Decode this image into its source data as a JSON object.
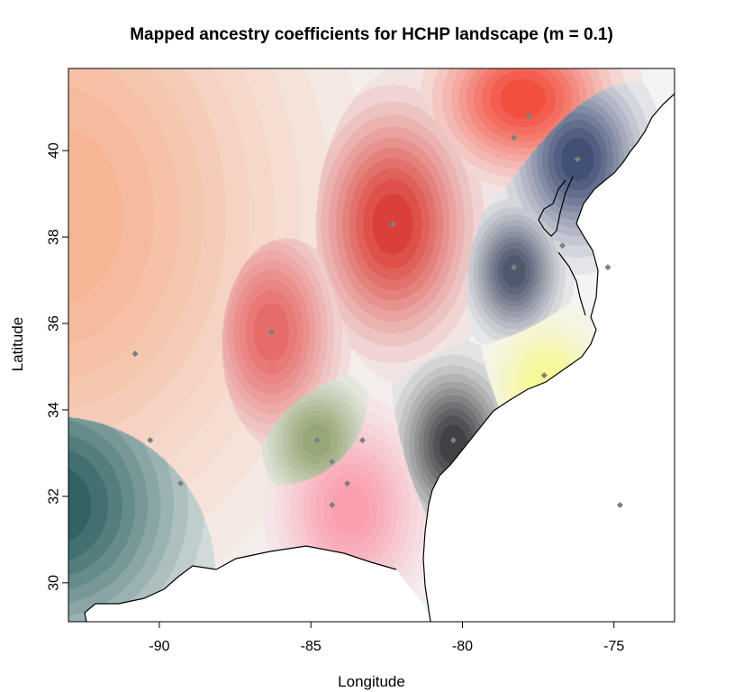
{
  "chart_data": {
    "type": "heatmap",
    "title": "Mapped ancestry coefficients for HCHP landscape (m = 0.1)",
    "xlabel": "Longitude",
    "ylabel": "Latitude",
    "xlim": [
      -93,
      -73
    ],
    "ylim": [
      29.1,
      41.9
    ],
    "x_ticks": [
      -90,
      -85,
      -80,
      -75
    ],
    "y_ticks": [
      30,
      32,
      34,
      36,
      38,
      40
    ],
    "grid": false,
    "legend": "none",
    "clusters": [
      {
        "color": "#f6b08d",
        "center": [
          -93.5,
          38.5
        ],
        "spread": [
          5.5,
          5.0
        ]
      },
      {
        "color": "#e5605d",
        "center": [
          -86.3,
          35.8
        ],
        "spread": [
          1.4,
          1.6
        ]
      },
      {
        "color": "#d92f28",
        "center": [
          -82.3,
          38.3
        ],
        "spread": [
          1.6,
          1.7
        ]
      },
      {
        "color": "#f3402f",
        "center": [
          -78.0,
          41.2
        ],
        "spread": [
          1.8,
          1.1
        ]
      },
      {
        "color": "#33416b",
        "center": [
          -76.2,
          39.8
        ],
        "spread": [
          1.3,
          1.2
        ]
      },
      {
        "color": "#414a64",
        "center": [
          -78.3,
          37.2
        ],
        "spread": [
          0.9,
          0.9
        ]
      },
      {
        "color": "#f7f78a",
        "center": [
          -77.2,
          34.6
        ],
        "spread": [
          1.1,
          0.9
        ]
      },
      {
        "color": "#8fa06c",
        "center": [
          -84.8,
          33.3
        ],
        "spread": [
          1.1,
          0.9
        ]
      },
      {
        "color": "#303236",
        "center": [
          -80.3,
          33.2
        ],
        "spread": [
          1.1,
          1.1
        ]
      },
      {
        "color": "#fa97a8",
        "center": [
          -83.7,
          31.7
        ],
        "spread": [
          1.5,
          1.4
        ]
      },
      {
        "color": "#1e5655",
        "center": [
          -93.5,
          31.8
        ],
        "spread": [
          3.0,
          2.2
        ]
      }
    ],
    "samples": [
      {
        "lon": -90.8,
        "lat": 35.3
      },
      {
        "lon": -86.3,
        "lat": 35.8
      },
      {
        "lon": -82.3,
        "lat": 38.3
      },
      {
        "lon": -78.3,
        "lat": 40.3
      },
      {
        "lon": -77.8,
        "lat": 40.8
      },
      {
        "lon": -76.2,
        "lat": 39.8
      },
      {
        "lon": -78.3,
        "lat": 37.3
      },
      {
        "lon": -76.7,
        "lat": 37.8
      },
      {
        "lon": -75.2,
        "lat": 37.3
      },
      {
        "lon": -77.3,
        "lat": 34.8
      },
      {
        "lon": -90.3,
        "lat": 33.3
      },
      {
        "lon": -89.3,
        "lat": 32.3
      },
      {
        "lon": -84.8,
        "lat": 33.3
      },
      {
        "lon": -83.3,
        "lat": 33.3
      },
      {
        "lon": -84.3,
        "lat": 32.8
      },
      {
        "lon": -83.8,
        "lat": 32.3
      },
      {
        "lon": -84.3,
        "lat": 31.8
      },
      {
        "lon": -80.3,
        "lat": 33.3
      },
      {
        "lon": -74.8,
        "lat": 31.8
      }
    ]
  }
}
